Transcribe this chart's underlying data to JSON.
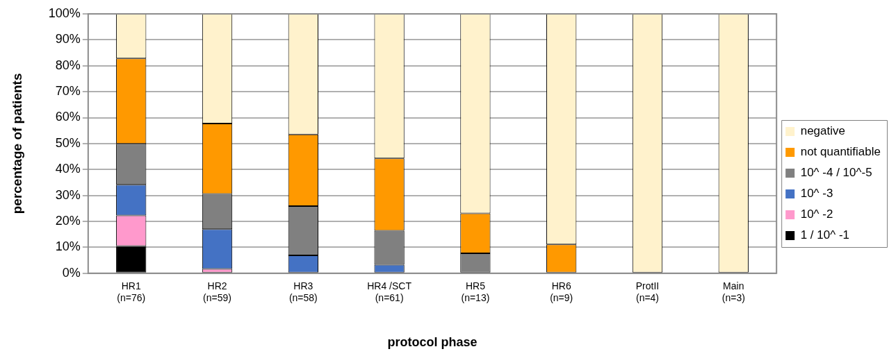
{
  "chart_data": {
    "type": "bar",
    "stacked": true,
    "xlabel": "protocol phase",
    "ylabel": "percentage of patients",
    "categories": [
      "HR1\n(n=76)",
      "HR2\n(n=59)",
      "HR3\n(n=58)",
      "HR4 /SCT\n(n=61)",
      "HR5\n(n=13)",
      "HR6\n(n=9)",
      "ProtII\n(n=4)",
      "Main\n(n=3)"
    ],
    "series": [
      {
        "name": "1 / 10^ -1",
        "color": "#000000",
        "values": [
          10.5,
          0,
          0,
          0,
          0,
          0,
          0,
          0
        ]
      },
      {
        "name": "10^ -2",
        "color": "#ff99cc",
        "values": [
          11.8,
          1.7,
          0,
          0,
          0,
          0,
          0,
          0
        ]
      },
      {
        "name": "10^ -3",
        "color": "#4472c4",
        "values": [
          11.8,
          15.3,
          6.9,
          3.3,
          0,
          0,
          0,
          0
        ]
      },
      {
        "name": "10^ -4 / 10^-5",
        "color": "#808080",
        "values": [
          15.8,
          13.6,
          19.0,
          13.1,
          7.7,
          0,
          0,
          0
        ]
      },
      {
        "name": "not quantifiable",
        "color": "#ff9900",
        "values": [
          32.9,
          27.1,
          27.6,
          27.9,
          15.4,
          11.1,
          0,
          0
        ]
      },
      {
        "name": "negative",
        "color": "#fff2cc",
        "values": [
          17.2,
          42.3,
          46.5,
          55.7,
          76.9,
          88.9,
          100,
          100
        ]
      }
    ],
    "ylim": [
      0,
      100
    ],
    "yticks": [
      {
        "value": 0,
        "label": "0%"
      },
      {
        "value": 10,
        "label": "10%"
      },
      {
        "value": 20,
        "label": "20%"
      },
      {
        "value": 30,
        "label": "30%"
      },
      {
        "value": 40,
        "label": "40%"
      },
      {
        "value": 50,
        "label": "50%"
      },
      {
        "value": 60,
        "label": "60%"
      },
      {
        "value": 70,
        "label": "70%"
      },
      {
        "value": 80,
        "label": "80%"
      },
      {
        "value": 90,
        "label": "90%"
      },
      {
        "value": 100,
        "label": "100%"
      }
    ],
    "grid": "y",
    "legend": "right"
  }
}
